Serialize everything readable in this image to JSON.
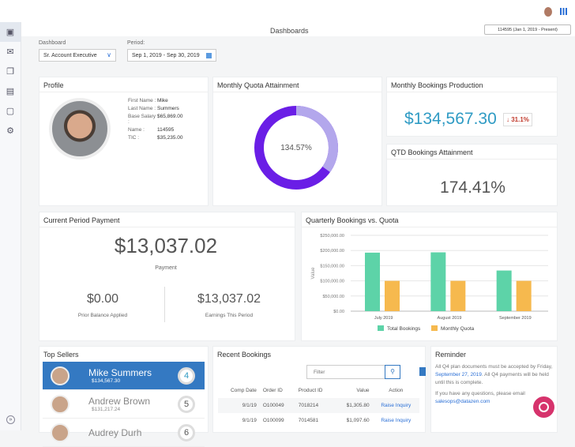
{
  "header": {
    "title": "Dashboards",
    "employee_selector": "114595 (Jan 1, 2019 - Present)"
  },
  "sidebar": {
    "icons": [
      "dashboard-icon",
      "mail-icon",
      "documents-icon",
      "clipboard-icon",
      "report-icon",
      "settings-icon",
      "expand-icon"
    ]
  },
  "filters": {
    "dashboard_label": "Dashboard",
    "dashboard_value": "Sr. Account Executive",
    "period_label": "Period:",
    "period_value": "Sep 1, 2019 - Sep 30, 2019"
  },
  "profile": {
    "title": "Profile",
    "fields": [
      {
        "label": "First Name :",
        "value": "Mike"
      },
      {
        "label": "Last Name :",
        "value": "Summers"
      },
      {
        "label": "Base Salary :",
        "value": "$65,869.00"
      },
      {
        "label": "Name :",
        "value": "114595"
      },
      {
        "label": "TIC :",
        "value": "$35,235.00"
      }
    ]
  },
  "quota": {
    "title": "Monthly Quota Attainment",
    "value": "134.57%",
    "colors": {
      "primary": "#6a1ee6",
      "secondary": "#b3a7ec"
    }
  },
  "bookings": {
    "title": "Monthly Bookings Production",
    "value": "$134,567.30",
    "change": "31.1%",
    "direction": "down"
  },
  "qtd": {
    "title": "QTD Bookings Attainment",
    "value": "174.41%"
  },
  "payment": {
    "title": "Current Period Payment",
    "total": "$13,037.02",
    "total_label": "Payment",
    "prior": "$0.00",
    "prior_label": "Prior Balance Applied",
    "earnings": "$13,037.02",
    "earnings_label": "Earnings This Period"
  },
  "chart_data": {
    "type": "bar",
    "title": "Quarterly Bookings vs. Quota",
    "ylabel": "Value",
    "categories": [
      "July 2019",
      "August 2019",
      "September 2019"
    ],
    "ylim": [
      0,
      250000
    ],
    "yticks": [
      "$0.00",
      "$50,000.00",
      "$100,000.00",
      "$150,000.00",
      "$200,000.00",
      "$250,000.00"
    ],
    "series": [
      {
        "name": "Total Bookings",
        "color": "#5dd3a8",
        "values": [
          193000,
          194000,
          134000
        ]
      },
      {
        "name": "Monthly Quota",
        "color": "#f6b94e",
        "values": [
          100000,
          100000,
          100000
        ]
      }
    ],
    "legend": "bottom",
    "grid": true
  },
  "sellers": {
    "title": "Top Sellers",
    "items": [
      {
        "name": "Mike Summers",
        "amount": "$134,567.30",
        "rank": "4"
      },
      {
        "name": "Andrew Brown",
        "amount": "$131,217.24",
        "rank": "5"
      },
      {
        "name": "Audrey Durh",
        "amount": "",
        "rank": "6"
      }
    ]
  },
  "recent": {
    "title": "Recent Bookings",
    "filter_placeholder": "Filter",
    "columns": [
      "Comp Date",
      "Order ID",
      "Product ID",
      "Value",
      "Action"
    ],
    "rows": [
      [
        "9/1/19",
        "O100049",
        "7018214",
        "$1,305.80",
        "Raise Inquiry"
      ],
      [
        "9/1/19",
        "O100099",
        "7014581",
        "$1,097.60",
        "Raise Inquiry"
      ]
    ]
  },
  "reminder": {
    "title": "Reminder",
    "text1": "All Q4 plan documents must be accepted by Friday, ",
    "date": "September 27, 2019",
    "text2": ". All Q4 payments will be held until this is complete.",
    "text3": "If you have any questions, please email",
    "email": "salesops@datazen.com"
  }
}
